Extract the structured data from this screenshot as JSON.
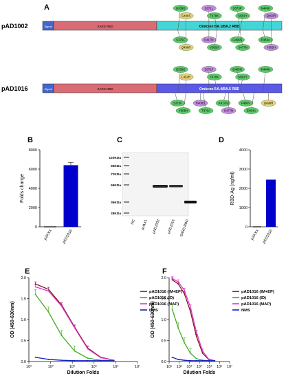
{
  "panel_letters": [
    "A",
    "B",
    "C",
    "D",
    "E",
    "F"
  ],
  "constructs": [
    {
      "name": "pAD1002",
      "signal_label": "Signal",
      "sars_label": "SARS RBD",
      "omicron_label": "Omicron BA.1/BA.2 RBD",
      "omicron_color": "#43d6d6",
      "mut_top": [
        "G339D",
        "S371L",
        "S373P",
        "N440K",
        "G446S",
        "T478K",
        "N501Y",
        "Q493R"
      ],
      "mut_bottom": [
        "S375F",
        "K417N",
        "G496S",
        "E484A",
        "Q498R",
        "Y505H",
        "S477N",
        "Y505H"
      ]
    },
    {
      "name": "pAD1016",
      "signal_label": "Signal",
      "sars_label": "SARS RBD",
      "omicron_label": "Omicron BA.4/BA.5 RBD",
      "omicron_color": "#5a5ae6",
      "mut_top": [
        "G339D",
        "S371F",
        "D405N",
        "N440K",
        "L452R",
        "T478K",
        "N501Y"
      ],
      "mut_bottom": [
        "S375F",
        "R408S",
        "K417N",
        "F486V",
        "Q498R",
        "Y505H",
        "T376A",
        "S477N",
        "E484A"
      ]
    }
  ],
  "gel": {
    "markers": [
      "130KDa",
      "95KDa",
      "72KDa",
      "55KDa",
      "36KDa",
      "28KDa"
    ],
    "lanes": [
      "NC",
      "pVAX1",
      "pAD1002",
      "pAD1016",
      "SARS RBD"
    ]
  },
  "chart_data": [
    {
      "panel": "B",
      "type": "bar",
      "categories": [
        "pVAX1",
        "pAD1016"
      ],
      "values": [
        0,
        6400
      ],
      "error": [
        0,
        300
      ],
      "ylabel": "Folds change",
      "ylim": [
        0,
        8000
      ],
      "yticks": [
        0,
        2000,
        4000,
        6000,
        8000
      ],
      "color": "#0000cc"
    },
    {
      "panel": "D",
      "type": "bar",
      "categories": [
        "pVAX1",
        "pAD1016"
      ],
      "values": [
        0,
        2450
      ],
      "error": [
        0,
        0
      ],
      "ylabel": "RBD-Ag (ng/ml)",
      "ylim": [
        0,
        4000
      ],
      "yticks": [
        0,
        1000,
        2000,
        3000,
        4000
      ],
      "color": "#0000cc"
    },
    {
      "panel": "E",
      "type": "line",
      "xscale": "log",
      "xlabel": "Dilution Folds",
      "ylabel": "OD (450-630nm)",
      "xlim": [
        100,
        10000000
      ],
      "ylim": [
        0,
        2.0
      ],
      "yticks": [
        0.0,
        0.5,
        1.0,
        1.5,
        2.0
      ],
      "xticks": [
        {
          "v": 100,
          "t": "10²"
        },
        {
          "v": 1000,
          "t": "10³"
        },
        {
          "v": 10000,
          "t": "10⁴"
        },
        {
          "v": 100000,
          "t": "10⁵"
        },
        {
          "v": 1000000,
          "t": "10⁶"
        },
        {
          "v": 10000000,
          "t": "10⁷"
        }
      ],
      "legend_position": "right",
      "x": [
        200,
        800,
        3200,
        12800,
        51200,
        204800,
        819200
      ],
      "series": [
        {
          "name": "pAD1016 (IM+EP)",
          "color": "#7a1a1a",
          "values": [
            1.85,
            1.72,
            1.35,
            0.82,
            0.32,
            0.1,
            0.03
          ]
        },
        {
          "name": "pAD1016 (ID)",
          "color": "#44aa22",
          "values": [
            1.6,
            1.18,
            0.62,
            0.25,
            0.08,
            0.03,
            0.02
          ]
        },
        {
          "name": "pAD1016 (MAP)",
          "color": "#dd33cc",
          "values": [
            1.78,
            1.68,
            1.32,
            0.8,
            0.3,
            0.09,
            0.03
          ]
        },
        {
          "name": "NMS",
          "color": "#1122bb",
          "values": [
            0.1,
            0.05,
            0.03,
            0.02,
            0.02,
            0.02,
            0.02
          ]
        }
      ]
    },
    {
      "panel": "F",
      "type": "line",
      "xscale": "log",
      "xlabel": "Dilution Folds",
      "ylabel": "OD (450-630nm)",
      "xlim": [
        10,
        10000000
      ],
      "ylim": [
        0,
        2.0
      ],
      "yticks": [
        0.0,
        0.5,
        1.0,
        1.5,
        2.0
      ],
      "xticks": [
        {
          "v": 10,
          "t": "10¹"
        },
        {
          "v": 100,
          "t": "10²"
        },
        {
          "v": 1000,
          "t": "10³"
        },
        {
          "v": 10000,
          "t": "10⁴"
        },
        {
          "v": 100000,
          "t": "10⁵"
        },
        {
          "v": 1000000,
          "t": "10⁶"
        },
        {
          "v": 10000000,
          "t": "10⁷"
        }
      ],
      "legend_position": "right",
      "x": [
        20,
        80,
        320,
        1280,
        5120,
        20480,
        81920,
        327680
      ],
      "series": [
        {
          "name": "pAD1016 (IM+EP)",
          "color": "#7a1a1a",
          "values": [
            1.95,
            1.85,
            1.62,
            1.2,
            0.6,
            0.2,
            0.05,
            0.02
          ]
        },
        {
          "name": "pAD1016 (ID)",
          "color": "#44aa22",
          "values": [
            1.25,
            0.8,
            0.45,
            0.2,
            0.07,
            0.03,
            0.02,
            0.02
          ]
        },
        {
          "name": "pAD1016 (MAP)",
          "color": "#dd33cc",
          "values": [
            1.98,
            1.9,
            1.7,
            1.3,
            0.7,
            0.25,
            0.06,
            0.02
          ]
        },
        {
          "name": "NMS",
          "color": "#1122bb",
          "values": [
            0.1,
            0.05,
            0.03,
            0.02,
            0.02,
            0.02,
            0.02,
            0.02
          ]
        }
      ]
    }
  ]
}
